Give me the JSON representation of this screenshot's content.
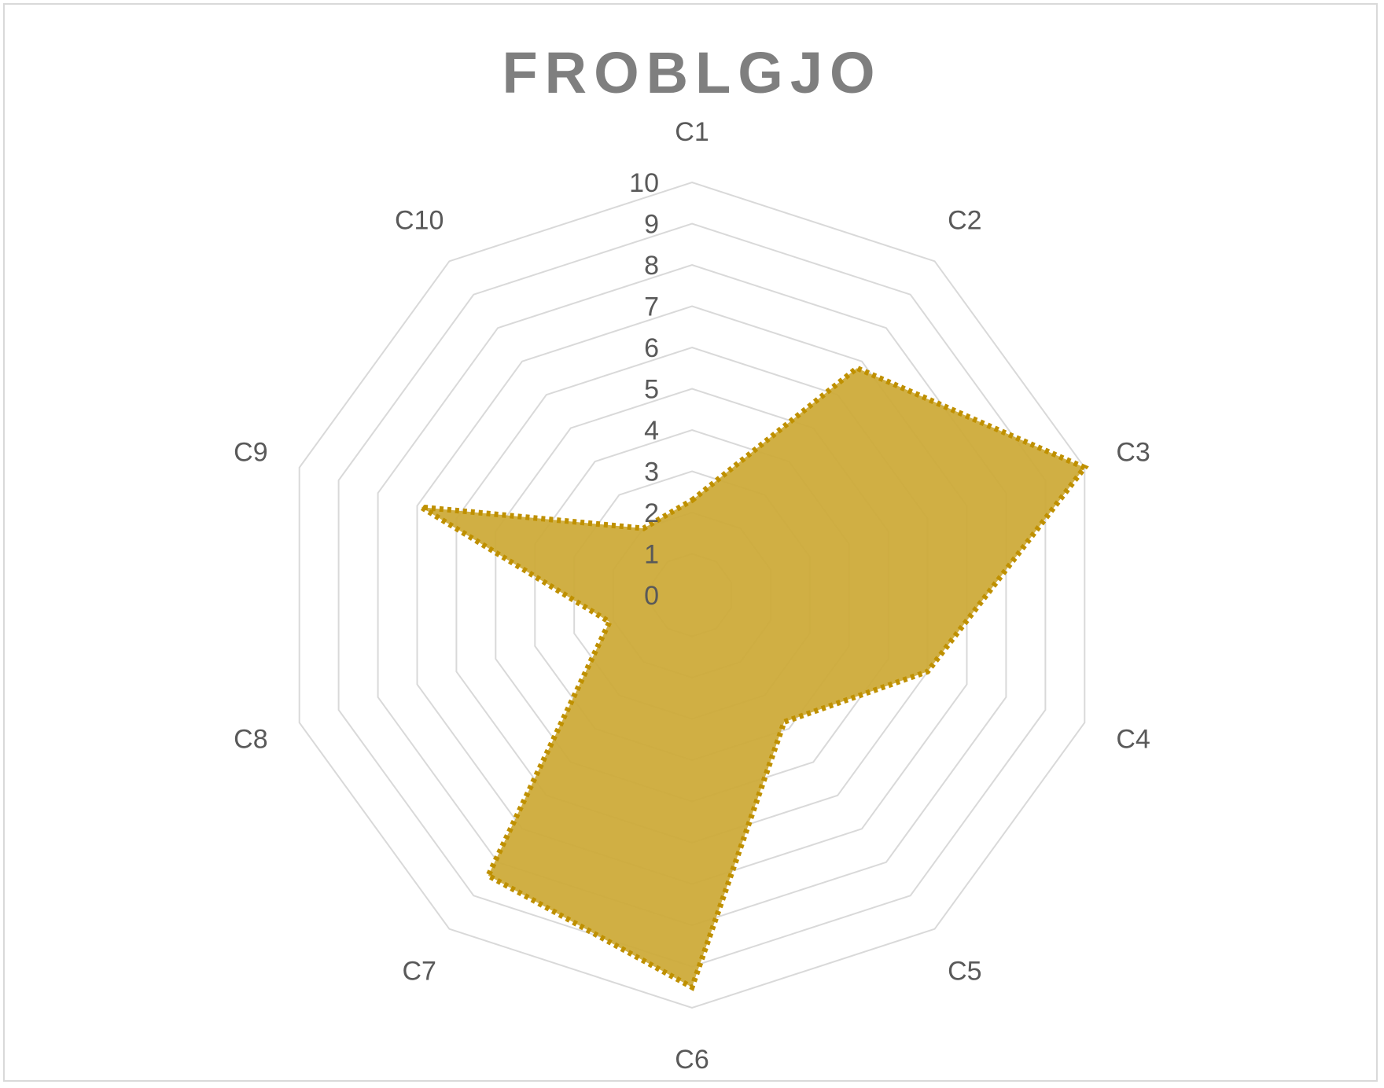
{
  "chart_data": {
    "type": "radar",
    "title": "FROBLGJO",
    "categories": [
      "C1",
      "C2",
      "C3",
      "C4",
      "C5",
      "C6",
      "C7",
      "C8",
      "C9",
      "C10"
    ],
    "series": [
      {
        "values": [
          2.3,
          6.8,
          10.0,
          6.0,
          3.8,
          9.5,
          8.4,
          2.1,
          6.9,
          2.0
        ]
      }
    ],
    "rlim": [
      0,
      10
    ],
    "ticks": [
      "0",
      "1",
      "2",
      "3",
      "4",
      "5",
      "6",
      "7",
      "8",
      "9",
      "10"
    ],
    "grid": true,
    "legend": "none",
    "colors": {
      "fill": "#cca936",
      "line": "#bf9000",
      "grid": "#d9d9d9",
      "title": "#7f7f7f",
      "label": "#595959"
    }
  }
}
